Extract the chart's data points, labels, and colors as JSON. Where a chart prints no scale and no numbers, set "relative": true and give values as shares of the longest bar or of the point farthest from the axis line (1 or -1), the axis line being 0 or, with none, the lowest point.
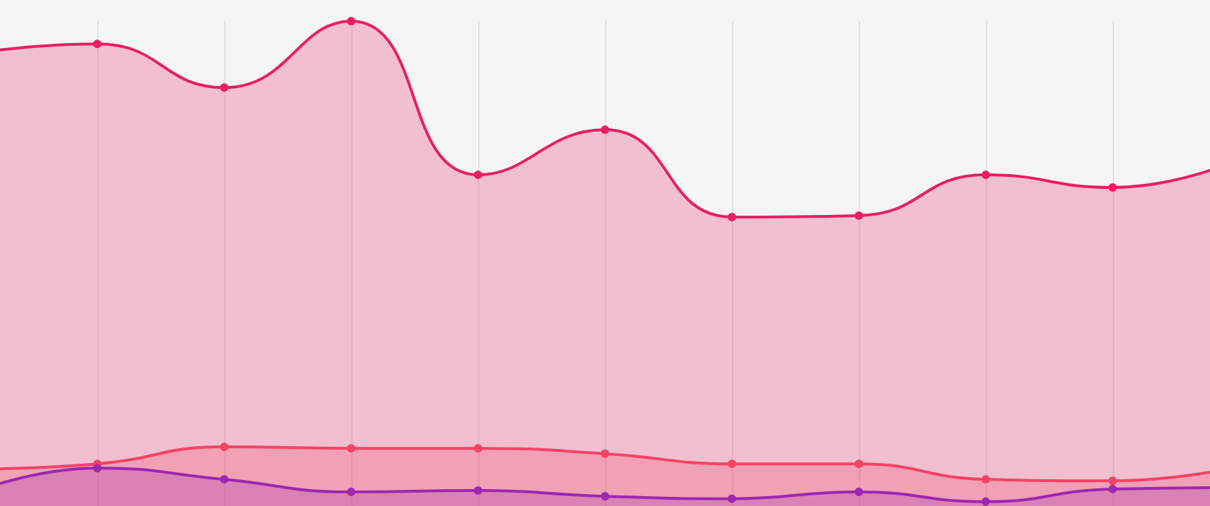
{
  "chart_data": {
    "type": "area",
    "relative": true,
    "categories": [
      null,
      null,
      null,
      null,
      null,
      null,
      null,
      null,
      null,
      null,
      null
    ],
    "series": [
      {
        "color": "#e91e63",
        "values": [
          0.933,
          0.953,
          0.863,
          1,
          0.683,
          0.776,
          0.596,
          0.599,
          0.683,
          0.657,
          0.715
        ]
      },
      {
        "color": "#f44366",
        "values": [
          0.076,
          0.087,
          0.122,
          0.119,
          0.119,
          0.108,
          0.087,
          0.087,
          0.055,
          0.052,
          0.081
        ]
      },
      {
        "color": "#9c27b0",
        "values": [
          0.026,
          0.078,
          0.055,
          0.029,
          0.032,
          0.02,
          0.015,
          0.029,
          0.009,
          0.035,
          0.038
        ]
      }
    ],
    "grid": "x",
    "marker": "circle",
    "line_style": "solid"
  }
}
